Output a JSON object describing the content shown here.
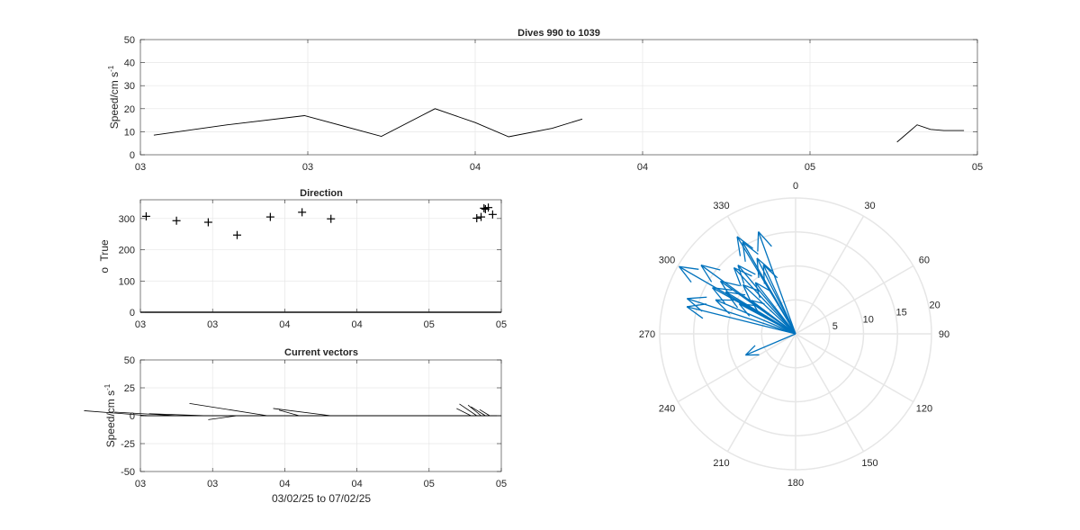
{
  "chart_data": [
    {
      "type": "line",
      "title": "Dives 990 to 1039",
      "ylabel": "Speed/cm s",
      "ylabel_sup": "-1",
      "ylim": [
        0,
        50
      ],
      "yticks": [
        "0",
        "10",
        "20",
        "30",
        "40",
        "50"
      ],
      "xlim": [
        0,
        25
      ],
      "xticks": [
        0,
        5,
        10,
        15,
        20,
        25
      ],
      "xticklabels": [
        "03",
        "03",
        "04",
        "04",
        "05",
        "05"
      ],
      "grid": true,
      "series": [
        {
          "x": [
            0.4,
            2.6,
            4.9,
            7.2,
            8.8,
            10.0,
            11.0,
            12.3,
            13.2
          ],
          "y": [
            8.5,
            13.0,
            17.0,
            8.0,
            20.0,
            14.0,
            7.8,
            11.5,
            15.5
          ]
        },
        {
          "x": [
            22.6,
            23.0,
            23.2,
            23.6,
            24.0,
            24.6
          ],
          "y": [
            5.5,
            10.5,
            13.0,
            11.0,
            10.5,
            10.5
          ]
        }
      ]
    },
    {
      "type": "scatter",
      "title": "Direction",
      "ylabel": "o  True",
      "ylim": [
        0,
        360
      ],
      "yticks": [
        "0",
        "100",
        "200",
        "300"
      ],
      "xlim": [
        0,
        25
      ],
      "xticks": [
        0,
        5,
        10,
        15,
        20,
        25
      ],
      "xticklabels": [
        "03",
        "03",
        "04",
        "04",
        "05",
        "05"
      ],
      "grid": true,
      "marker": "+",
      "x": [
        0.4,
        2.5,
        4.7,
        6.7,
        9.0,
        11.2,
        13.2,
        23.3,
        23.6,
        23.8,
        23.9,
        24.1,
        24.4
      ],
      "y": [
        307,
        293,
        288,
        247,
        305,
        320,
        299,
        301,
        305,
        333,
        330,
        335,
        313
      ]
    },
    {
      "type": "quiver",
      "title": "Current vectors",
      "ylabel": "Speed/cm s",
      "ylabel_sup": "-1",
      "xlabel": "03/02/25 to 07/02/25",
      "ylim": [
        -50,
        50
      ],
      "yticks": [
        "-50",
        "-25",
        "0",
        "25",
        "50"
      ],
      "xlim": [
        0,
        25
      ],
      "xticks": [
        0,
        5,
        10,
        15,
        20,
        25
      ],
      "xticklabels": [
        "03",
        "03",
        "04",
        "04",
        "05",
        "05"
      ],
      "grid": true,
      "vectors": [
        {
          "x": 0.6,
          "u": -4.5,
          "v": 4.5
        },
        {
          "x": 2.6,
          "u": -4.4,
          "v": 3.2
        },
        {
          "x": 4.6,
          "u": -4.0,
          "v": 1.8
        },
        {
          "x": 6.7,
          "u": -2.0,
          "v": -3.5
        },
        {
          "x": 8.8,
          "u": -5.4,
          "v": 11.0
        },
        {
          "x": 11.0,
          "u": -1.4,
          "v": 5.0
        },
        {
          "x": 13.2,
          "u": -4.0,
          "v": 6.5
        },
        {
          "x": 22.9,
          "u": -1.0,
          "v": 6.5
        },
        {
          "x": 23.3,
          "u": -1.2,
          "v": 10.5
        },
        {
          "x": 23.6,
          "u": -0.9,
          "v": 9.5
        },
        {
          "x": 23.9,
          "u": -1.0,
          "v": 8.0
        },
        {
          "x": 24.2,
          "u": -0.7,
          "v": 5.5
        }
      ]
    },
    {
      "type": "compass",
      "rlim": [
        0,
        20
      ],
      "rticks": [
        "5",
        "10",
        "15",
        "20"
      ],
      "rvalues": [
        5,
        10,
        15,
        20
      ],
      "theta_labels": [
        "0",
        "30",
        "60",
        "90",
        "120",
        "150",
        "180",
        "210",
        "240",
        "270",
        "300",
        "330"
      ],
      "theta_values": [
        0,
        30,
        60,
        90,
        120,
        150,
        180,
        210,
        240,
        270,
        300,
        330
      ],
      "color": "#0072BD",
      "arrows": [
        {
          "dir": 300,
          "speed": 19.8
        },
        {
          "dir": 284,
          "speed": 16.5
        },
        {
          "dir": 306,
          "speed": 17.2
        },
        {
          "dir": 307,
          "speed": 8.2
        },
        {
          "dir": 293,
          "speed": 12.8
        },
        {
          "dir": 288,
          "speed": 16.8
        },
        {
          "dir": 247,
          "speed": 8.0
        },
        {
          "dir": 305,
          "speed": 13.5
        },
        {
          "dir": 320,
          "speed": 13.2
        },
        {
          "dir": 299,
          "speed": 14.0
        },
        {
          "dir": 301,
          "speed": 12.0
        },
        {
          "dir": 333,
          "speed": 12.5
        },
        {
          "dir": 330,
          "speed": 15.6
        },
        {
          "dir": 335,
          "speed": 11.2
        },
        {
          "dir": 313,
          "speed": 10.6
        },
        {
          "dir": 340,
          "speed": 16.0
        },
        {
          "dir": 329,
          "speed": 16.7
        },
        {
          "dir": 317,
          "speed": 13.3
        },
        {
          "dir": 322,
          "speed": 9.6
        },
        {
          "dir": 298,
          "speed": 9.4
        }
      ]
    }
  ]
}
